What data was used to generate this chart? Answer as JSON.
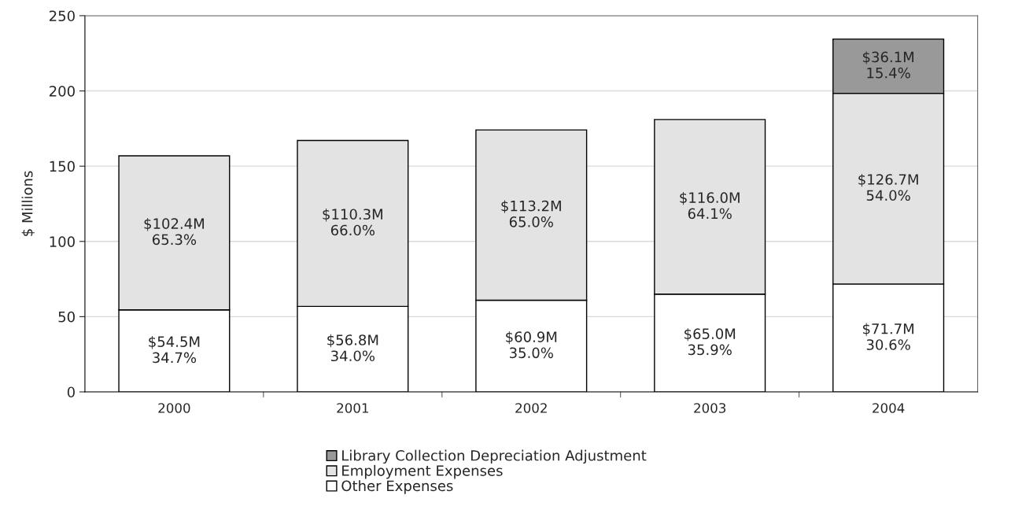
{
  "chart_data": {
    "type": "bar",
    "stacked": true,
    "ylabel": "$ Millions",
    "categories": [
      "2000",
      "2001",
      "2002",
      "2003",
      "2004"
    ],
    "series": [
      {
        "name": "Other Expenses",
        "color": "#ffffff",
        "values": [
          54.5,
          56.8,
          60.9,
          65.0,
          71.7
        ],
        "value_labels": [
          "$54.5M",
          "$56.8M",
          "$60.9M",
          "$65.0M",
          "$71.7M"
        ]
      },
      {
        "name": "Employment Expenses",
        "color": "#e3e3e3",
        "values": [
          102.4,
          110.3,
          113.2,
          116.0,
          126.7
        ],
        "value_labels": [
          "$102.4M",
          "$110.3M",
          "$113.2M",
          "$116.0M",
          "$126.7M"
        ]
      },
      {
        "name": "Library Collection Depreciation Adjustment",
        "color": "#999999",
        "values": [
          null,
          null,
          null,
          null,
          36.1
        ],
        "value_labels": [
          null,
          null,
          null,
          null,
          "$36.1M"
        ]
      }
    ],
    "annotations": [
      "34.7%",
      "34.0%",
      "35.0%",
      "35.9%",
      "30.6%",
      "65.3%",
      "66.0%",
      "65.0%",
      "64.1%",
      "54.0%",
      "15.4%"
    ],
    "ylim": [
      0,
      250
    ],
    "yticks": [
      0,
      50,
      100,
      150,
      200,
      250
    ],
    "grid": "y",
    "legend": "bottom"
  }
}
